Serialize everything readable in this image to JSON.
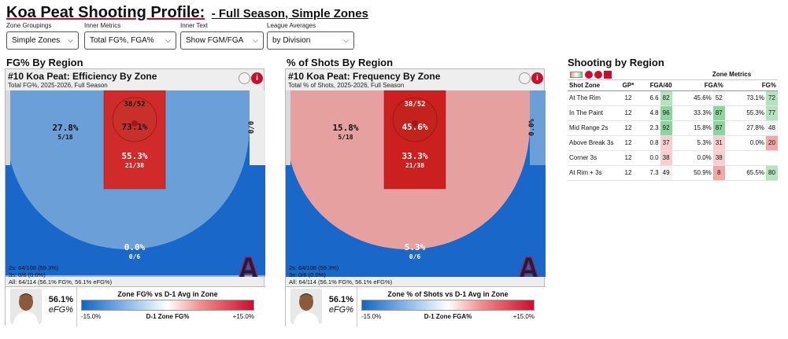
{
  "header": {
    "title": "Koa Peat Shooting Profile:",
    "subtitle": "- Full Season, Simple Zones"
  },
  "controls": [
    {
      "label": "Zone Groupings",
      "value": "Simple Zones"
    },
    {
      "label": "Inner Metrics",
      "value": "Total FG%, FGA%"
    },
    {
      "label": "Inner Text",
      "value": "Show FGM/FGA"
    },
    {
      "label": "League Averages",
      "value": "by Division"
    }
  ],
  "panel1": {
    "section": "FG% By Region",
    "title": "#10 Koa Peat: Efficiency By Zone",
    "subtitle": "Total FG%, 2025-2026, Full Season",
    "zones": {
      "rim_frac": "38/52",
      "rim_pct": "73.1%",
      "paint_pct": "55.3%",
      "paint_frac": "21/38",
      "mid_pct": "27.8%",
      "mid_frac": "5/18",
      "corner_r": "0/0",
      "three_pct": "0.0%",
      "three_frac": "0/6"
    },
    "summary": [
      "2s: 64/108 (59.3%)",
      "3s: 0/6 (0.0%)",
      "All: 64/114 (56.1% FG%, 56.1% eFG%)"
    ],
    "efg_value": "56.1%",
    "efg_label": "eFG%",
    "legend": {
      "title": "Zone FG% vs D-1 Avg in Zone",
      "left": "-15.0%",
      "mid": "D-1 Zone FG%",
      "right": "+15.0%"
    },
    "colors": {
      "mid": "#6a9fd8",
      "paint": "#d12a2a",
      "three": "#1867c9",
      "rim": "#c9302c"
    }
  },
  "panel2": {
    "section": "% of Shots By Region",
    "title": "#10 Koa Peat: Frequency By Zone",
    "subtitle": "Total % of Shots, 2025-2026, Full Season",
    "zones": {
      "rim_frac": "38/52",
      "rim_pct": "45.6%",
      "paint_pct": "33.3%",
      "paint_frac": "21/38",
      "mid_pct": "15.8%",
      "mid_frac": "5/18",
      "corner_r": "0.0%",
      "three_pct": "5.3%",
      "three_frac": "0/6"
    },
    "summary": [
      "2s: 64/108 (59.3%)",
      "3s: 0/6 (0.0%)",
      "All: 64/114 (56.1% FG%, 56.1% eFG%)"
    ],
    "efg_value": "56.1%",
    "efg_label": "eFG%",
    "legend": {
      "title": "Zone % of Shots vs D-1 Avg in Zone",
      "left": "-15.0%",
      "mid": "D-1 Zone FGA%",
      "right": "+15.0%"
    },
    "colors": {
      "mid": "#e6a0a0",
      "paint": "#cc1f1f",
      "three": "#1867c9",
      "rim": "#c4221c"
    }
  },
  "table": {
    "section": "Shooting by Region",
    "group_header": "Zone Metrics",
    "columns": [
      "Shot Zone",
      "GP*",
      "FGA/40",
      "FGA%",
      "FG%"
    ],
    "rows": [
      {
        "zone": "At The Rim",
        "gp": "12",
        "fga40": "6.6",
        "fga40_pct": "82",
        "fgap": "45.6%",
        "fgap_pct": "52",
        "fg": "73.1%",
        "fg_pct": "72"
      },
      {
        "zone": "In The Paint",
        "gp": "12",
        "fga40": "4.8",
        "fga40_pct": "96",
        "fgap": "33.3%",
        "fgap_pct": "87",
        "fg": "55.3%",
        "fg_pct": "77"
      },
      {
        "zone": "Mid Range 2s",
        "gp": "12",
        "fga40": "2.3",
        "fga40_pct": "92",
        "fgap": "15.8%",
        "fgap_pct": "87",
        "fg": "27.8%",
        "fg_pct": "48"
      },
      {
        "zone": "Above Break 3s",
        "gp": "12",
        "fga40": "0.8",
        "fga40_pct": "37",
        "fgap": "5.3%",
        "fgap_pct": "31",
        "fg": "0.0%",
        "fg_pct": "20"
      },
      {
        "zone": "Corner 3s",
        "gp": "12",
        "fga40": "0.0",
        "fga40_pct": "38",
        "fgap": "0.0%",
        "fgap_pct": "38",
        "fg": "",
        "fg_pct": ""
      },
      {
        "zone": "At Rim + 3s",
        "gp": "12",
        "fga40": "7.3",
        "fga40_pct": "49",
        "fgap": "50.9%",
        "fgap_pct": "8",
        "fg": "65.5%",
        "fg_pct": "80"
      }
    ]
  }
}
